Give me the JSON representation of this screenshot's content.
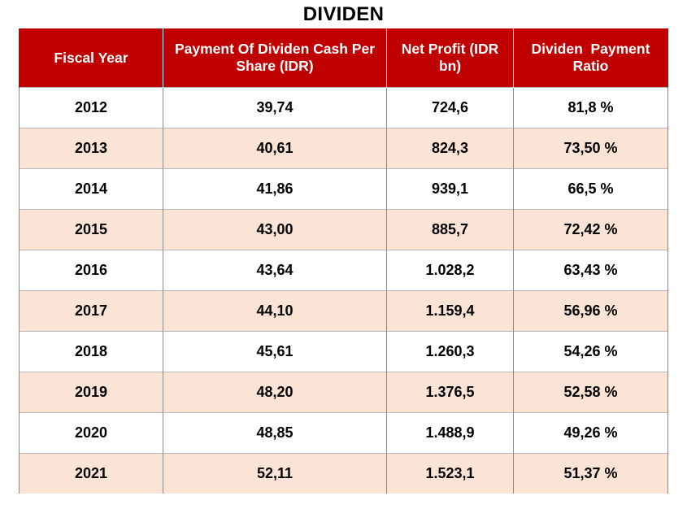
{
  "title": "DIVIDEN",
  "columns": [
    "Fiscal Year",
    "Payment Of Dividen Cash Per Share (IDR)",
    "Net Profit (IDR bn)",
    "Dividen  Payment Ratio"
  ],
  "rows": [
    {
      "year": "2012",
      "dps": "39,74",
      "profit": "724,6",
      "ratio": "81,8 %"
    },
    {
      "year": "2013",
      "dps": "40,61",
      "profit": "824,3",
      "ratio": "73,50 %"
    },
    {
      "year": "2014",
      "dps": "41,86",
      "profit": "939,1",
      "ratio": "66,5 %"
    },
    {
      "year": "2015",
      "dps": "43,00",
      "profit": "885,7",
      "ratio": "72,42 %"
    },
    {
      "year": "2016",
      "dps": "43,64",
      "profit": "1.028,2",
      "ratio": "63,43 %"
    },
    {
      "year": "2017",
      "dps": "44,10",
      "profit": "1.159,4",
      "ratio": "56,96 %"
    },
    {
      "year": "2018",
      "dps": "45,61",
      "profit": "1.260,3",
      "ratio": "54,26 %"
    },
    {
      "year": "2019",
      "dps": "48,20",
      "profit": "1.376,5",
      "ratio": "52,58 %"
    },
    {
      "year": "2020",
      "dps": "48,85",
      "profit": "1.488,9",
      "ratio": "49,26 %"
    },
    {
      "year": "2021",
      "dps": "52,11",
      "profit": "1.523,1",
      "ratio": "51,37 %"
    }
  ],
  "colors": {
    "header_bg": "#c00000",
    "header_text": "#ffffff",
    "stripe_bg": "#fbe4d5",
    "row_bg": "#ffffff"
  }
}
